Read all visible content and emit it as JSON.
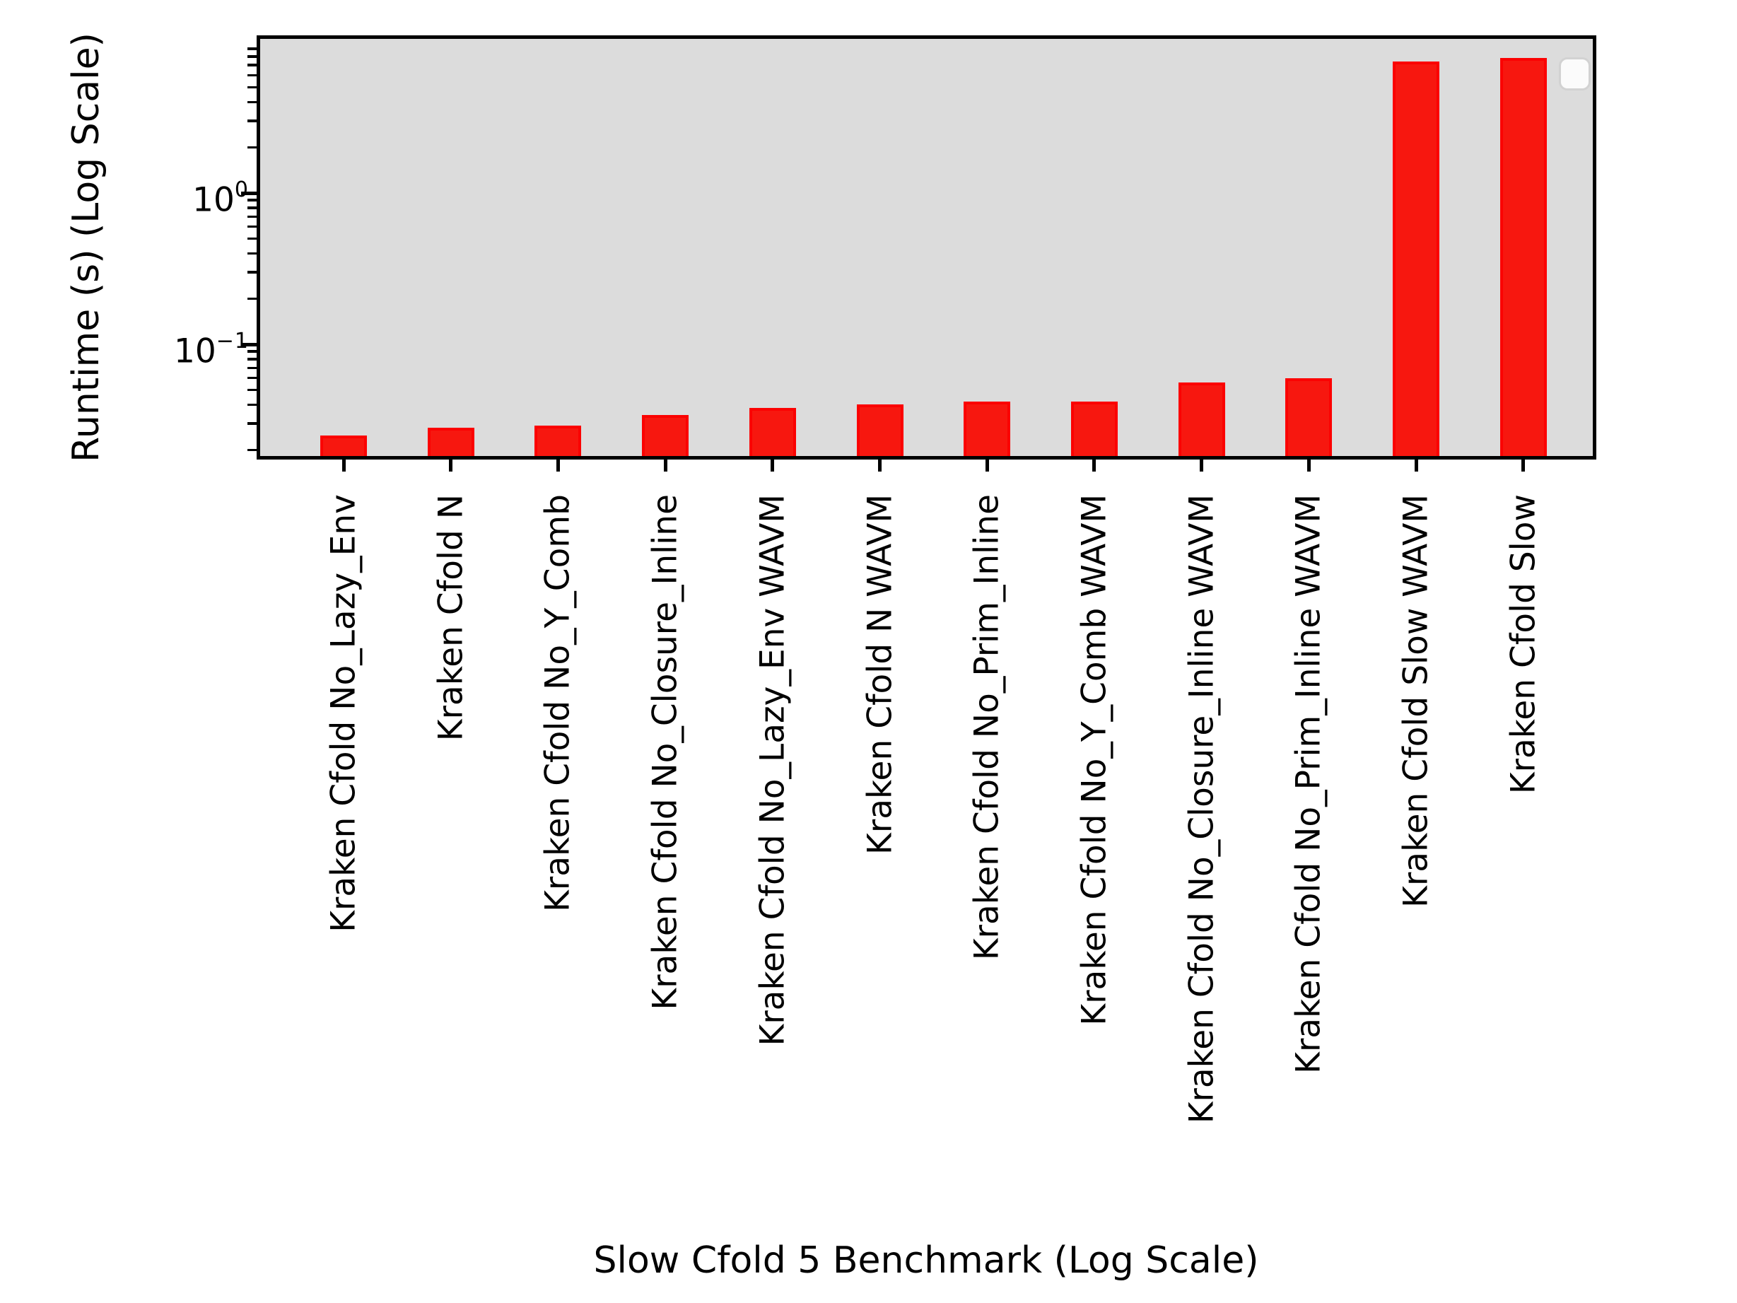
{
  "chart_data": {
    "type": "bar",
    "title": "",
    "xlabel": "Slow Cfold 5 Benchmark (Log Scale)",
    "ylabel": "Runtime (s) (Log Scale)",
    "yscale": "log",
    "ylim": [
      0.0183,
      10.45
    ],
    "grid": false,
    "plot_bg_color": "#dcdcdc",
    "bar_color": "#f7170f",
    "bar_edge_color": "#fb0202",
    "legend": {
      "visible": true,
      "entries": []
    },
    "categories": [
      "Kraken Cfold No_Lazy_Env",
      "Kraken Cfold N",
      "Kraken Cfold No_Y_Comb",
      "Kraken Cfold No_Closure_Inline",
      "Kraken Cfold No_Lazy_Env WAVM",
      "Kraken Cfold N WAVM",
      "Kraken Cfold No_Prim_Inline",
      "Kraken Cfold No_Y_Comb WAVM",
      "Kraken Cfold No_Closure_Inline WAVM",
      "Kraken Cfold No_Prim_Inline WAVM",
      "Kraken Cfold Slow WAVM",
      "Kraken Cfold Slow"
    ],
    "values": [
      0.025,
      0.028,
      0.029,
      0.034,
      0.038,
      0.04,
      0.042,
      0.042,
      0.056,
      0.06,
      7.4,
      7.8
    ],
    "y_major_ticks": [
      {
        "value": 1,
        "base": "10",
        "exp": "0"
      },
      {
        "value": 0.1,
        "base": "10",
        "exp": "−1"
      }
    ],
    "y_minor_tick_mantissas": [
      2,
      3,
      4,
      5,
      6,
      7,
      8,
      9
    ],
    "y_minor_tick_decades": [
      -2,
      -1,
      0
    ]
  }
}
